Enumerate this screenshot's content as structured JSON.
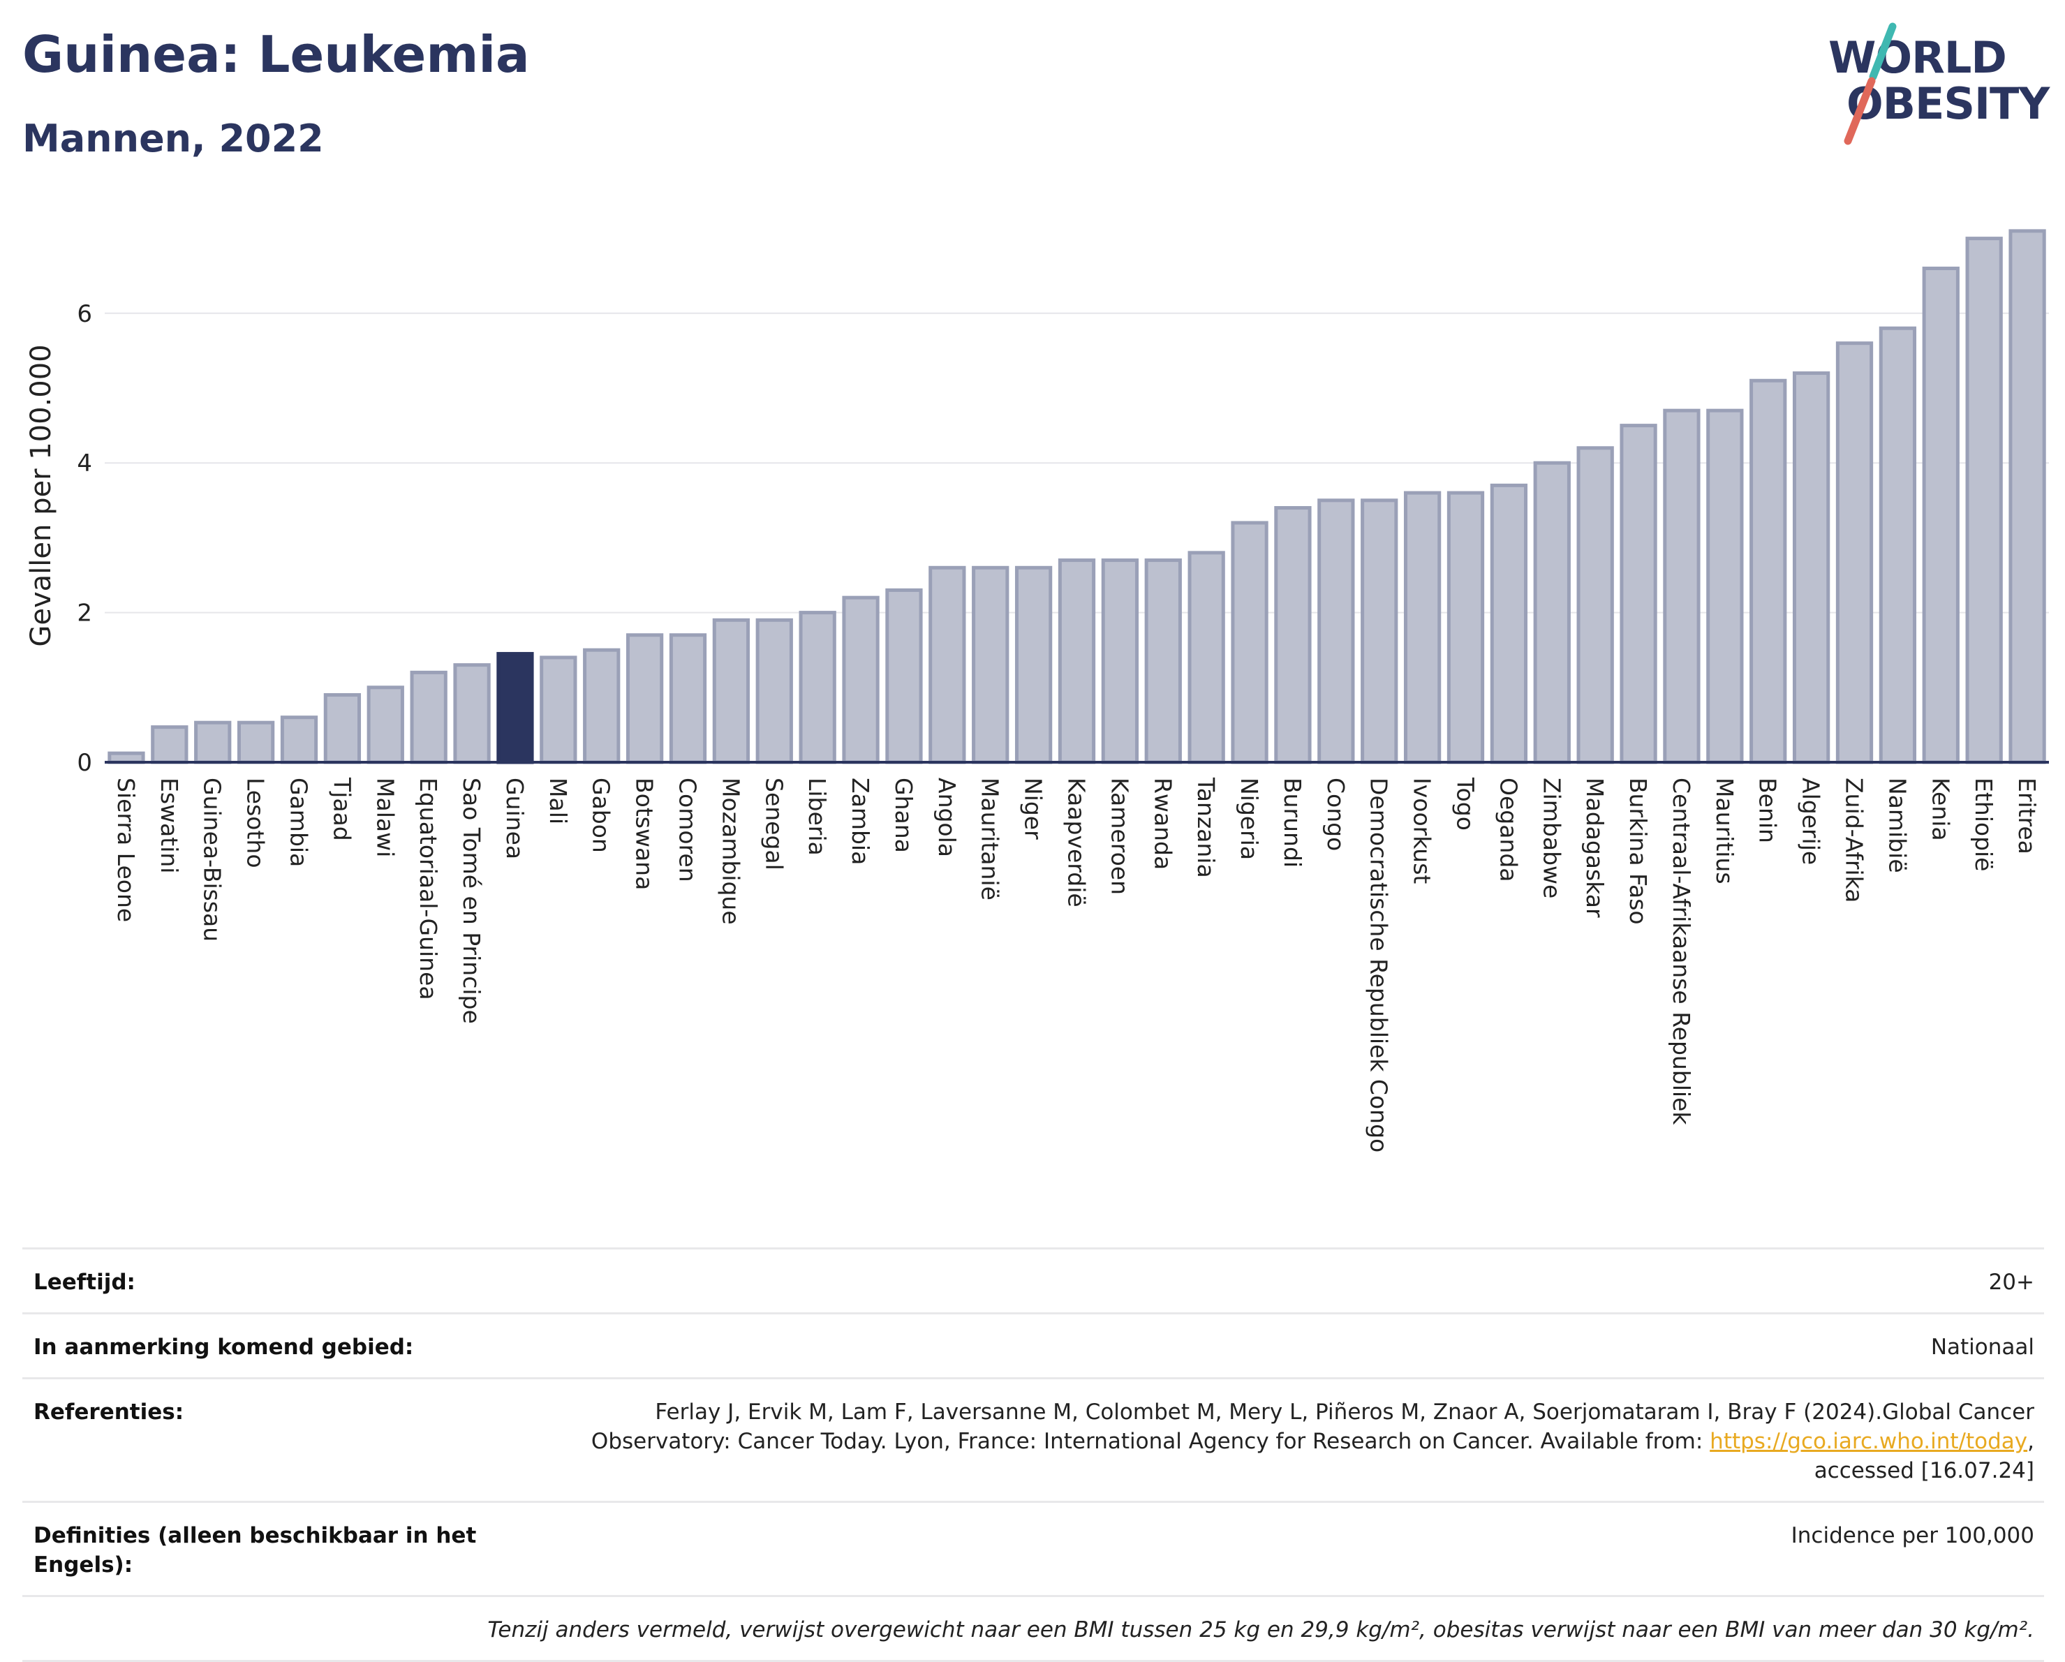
{
  "header": {
    "title": "Guinea: Leukemia",
    "subtitle": "Mannen, 2022"
  },
  "logo": {
    "line1": "WORLD",
    "line2": "OBESITY",
    "colors": {
      "text": "#2b355f",
      "slash_top": "#3fb8b1",
      "slash_bottom": "#e0685a"
    }
  },
  "chart_data": {
    "type": "bar",
    "ylabel": "Gevallen per 100.000",
    "ylim": [
      0,
      7.5
    ],
    "yticks": [
      0,
      2,
      4,
      6
    ],
    "grid": true,
    "highlight": "Guinea",
    "colors": {
      "bar": "#bcc0cf",
      "bar_edge": "#9aa0b7",
      "highlight": "#2b355f",
      "grid": "#e6e6ea",
      "axis": "#2b355f"
    },
    "categories": [
      "Sierra Leone",
      "Eswatini",
      "Guinea-Bissau",
      "Lesotho",
      "Gambia",
      "Tjaad",
      "Malawi",
      "Equatoriaal-Guinea",
      "Sao Tomé en Principe",
      "Guinea",
      "Mali",
      "Gabon",
      "Botswana",
      "Comoren",
      "Mozambique",
      "Senegal",
      "Liberia",
      "Zambia",
      "Ghana",
      "Angola",
      "Mauritanië",
      "Niger",
      "Kaapverdië",
      "Kameroen",
      "Rwanda",
      "Tanzania",
      "Nigeria",
      "Burundi",
      "Congo",
      "Democratische Republiek Congo",
      "Ivoorkust",
      "Togo",
      "Oeganda",
      "Zimbabwe",
      "Madagaskar",
      "Burkina Faso",
      "Centraal-Afrikaanse Republiek",
      "Mauritius",
      "Benin",
      "Algerije",
      "Zuid-Afrika",
      "Namibië",
      "Kenia",
      "Ethiopië",
      "Eritrea"
    ],
    "values": [
      0.12,
      0.47,
      0.53,
      0.53,
      0.6,
      0.9,
      1.0,
      1.2,
      1.3,
      1.45,
      1.4,
      1.5,
      1.7,
      1.7,
      1.9,
      1.9,
      2.0,
      2.2,
      2.3,
      2.6,
      2.6,
      2.6,
      2.7,
      2.7,
      2.7,
      2.8,
      3.2,
      3.4,
      3.5,
      3.5,
      3.6,
      3.6,
      3.7,
      4.0,
      4.2,
      4.5,
      4.7,
      4.7,
      5.1,
      5.2,
      5.6,
      5.8,
      6.6,
      7.0,
      7.1
    ]
  },
  "info": {
    "age_label": "Leeftijd:",
    "age_value": "20+",
    "area_label": "In aanmerking komend gebied:",
    "area_value": "Nationaal",
    "refs_label": "Referenties:",
    "refs_text1": "Ferlay J, Ervik M, Lam F, Laversanne M, Colombet M, Mery L, Piñeros M, Znaor A, Soerjomataram I, Bray F (2024).Global Cancer Observatory: Cancer Today. Lyon, France: International Agency for Research on Cancer. Available from: ",
    "refs_link": "https://gco.iarc.who.int/today",
    "refs_text2": ", accessed [16.07.24]",
    "defs_label": "Definities (alleen beschikbaar in het Engels):",
    "defs_value": "Incidence per 100,000",
    "note": "Tenzij anders vermeld, verwijst overgewicht naar een BMI tussen 25 kg en 29,9 kg/m², obesitas verwijst naar een BMI van meer dan 30 kg/m²."
  }
}
